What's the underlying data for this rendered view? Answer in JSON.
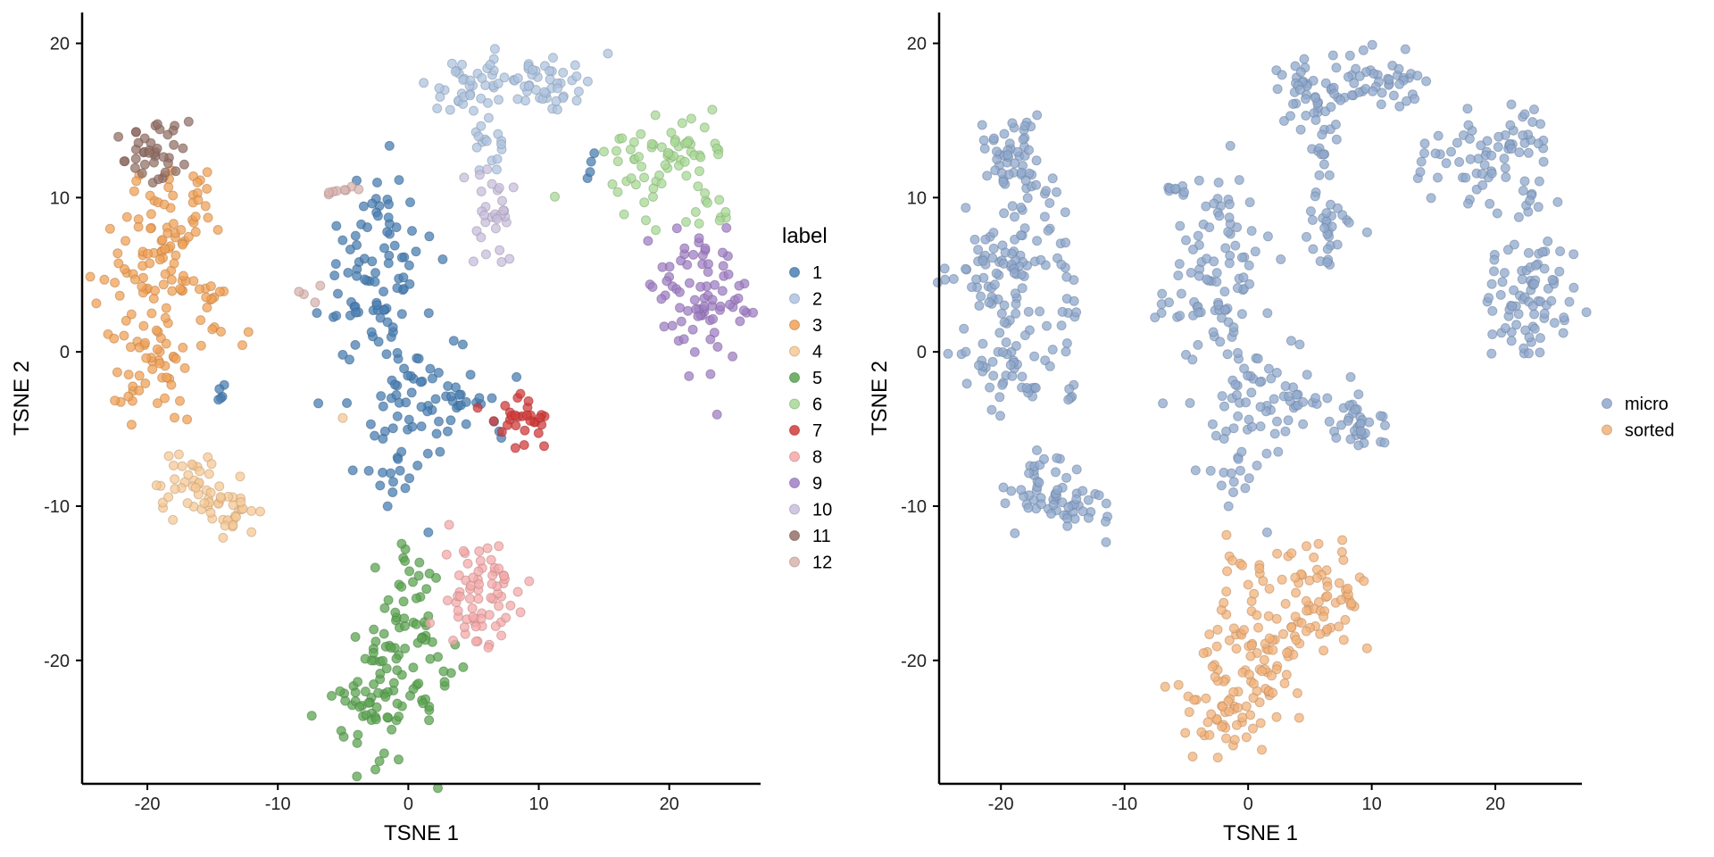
{
  "chart_data": [
    {
      "type": "scatter",
      "id": "left",
      "xlabel": "TSNE 1",
      "ylabel": "TSNE 2",
      "xlim": [
        -25,
        27
      ],
      "ylim": [
        -28,
        22
      ],
      "xticks": [
        -20,
        -10,
        0,
        10,
        20
      ],
      "yticks": [
        -20,
        -10,
        0,
        10,
        20
      ],
      "grid": false,
      "legend": {
        "title": "label",
        "position": "right"
      },
      "series": [
        {
          "name": "1",
          "color": "#4a7fb3",
          "clusters": [
            {
              "cx": -2.5,
              "cy": 5.5,
              "sx": 2.2,
              "sy": 3.2,
              "n": 85
            },
            {
              "cx": 1.0,
              "cy": -3.0,
              "sx": 3.0,
              "sy": 2.2,
              "n": 70
            },
            {
              "cx": -1.5,
              "cy": -8.0,
              "sx": 0.8,
              "sy": 1.2,
              "n": 12
            },
            {
              "cx": 5.0,
              "cy": -3.0,
              "sx": 0.8,
              "sy": 0.4,
              "n": 5
            },
            {
              "cx": -14.5,
              "cy": -2.7,
              "sx": 0.5,
              "sy": 0.3,
              "n": 5
            },
            {
              "cx": 14.5,
              "cy": 12.0,
              "sx": 0.6,
              "sy": 0.8,
              "n": 4
            }
          ]
        },
        {
          "name": "2",
          "color": "#aec3df",
          "clusters": [
            {
              "cx": 4.5,
              "cy": 17.0,
              "sx": 1.4,
              "sy": 1.0,
              "n": 30
            },
            {
              "cx": 9.5,
              "cy": 17.5,
              "sx": 2.6,
              "sy": 1.0,
              "n": 55
            },
            {
              "cx": 6.0,
              "cy": 13.0,
              "sx": 0.8,
              "sy": 1.0,
              "n": 15
            }
          ]
        },
        {
          "name": "3",
          "color": "#f0a157",
          "clusters": [
            {
              "cx": -20.0,
              "cy": 5.5,
              "sx": 2.2,
              "sy": 2.5,
              "n": 75
            },
            {
              "cx": -19.5,
              "cy": -1.0,
              "sx": 2.0,
              "sy": 1.6,
              "n": 50
            },
            {
              "cx": -17.5,
              "cy": 9.5,
              "sx": 1.6,
              "sy": 1.8,
              "n": 25
            },
            {
              "cx": -15.0,
              "cy": 3.0,
              "sx": 1.2,
              "sy": 2.0,
              "n": 15
            }
          ]
        },
        {
          "name": "4",
          "color": "#f6c895",
          "clusters": [
            {
              "cx": -17.0,
              "cy": -8.5,
              "sx": 1.6,
              "sy": 1.0,
              "n": 30
            },
            {
              "cx": -14.0,
              "cy": -10.3,
              "sx": 1.8,
              "sy": 0.9,
              "n": 35
            },
            {
              "cx": -5.0,
              "cy": -4.5,
              "sx": 0.2,
              "sy": 0.2,
              "n": 1
            }
          ]
        },
        {
          "name": "5",
          "color": "#5ca452",
          "clusters": [
            {
              "cx": -1.5,
              "cy": -22.5,
              "sx": 2.2,
              "sy": 1.8,
              "n": 70
            },
            {
              "cx": 0.5,
              "cy": -18.5,
              "sx": 2.0,
              "sy": 2.0,
              "n": 45
            },
            {
              "cx": -0.5,
              "cy": -14.5,
              "sx": 1.0,
              "sy": 1.0,
              "n": 10
            }
          ]
        },
        {
          "name": "6",
          "color": "#a7d894",
          "clusters": [
            {
              "cx": 18.0,
              "cy": 12.0,
              "sx": 1.8,
              "sy": 1.5,
              "n": 35
            },
            {
              "cx": 21.5,
              "cy": 13.5,
              "sx": 1.4,
              "sy": 1.2,
              "n": 30
            },
            {
              "cx": 22.5,
              "cy": 9.5,
              "sx": 1.0,
              "sy": 0.8,
              "n": 12
            }
          ]
        },
        {
          "name": "7",
          "color": "#d13b3b",
          "clusters": [
            {
              "cx": 9.0,
              "cy": -4.5,
              "sx": 1.0,
              "sy": 0.9,
              "n": 30
            }
          ]
        },
        {
          "name": "8",
          "color": "#f4a9a9",
          "clusters": [
            {
              "cx": 6.0,
              "cy": -15.0,
              "sx": 1.8,
              "sy": 1.5,
              "n": 45
            },
            {
              "cx": 5.0,
              "cy": -18.0,
              "sx": 1.4,
              "sy": 1.0,
              "n": 25
            }
          ]
        },
        {
          "name": "9",
          "color": "#a07fc4",
          "clusters": [
            {
              "cx": 22.5,
              "cy": 3.5,
              "sx": 1.8,
              "sy": 2.2,
              "n": 80
            }
          ]
        },
        {
          "name": "10",
          "color": "#c8bedb",
          "clusters": [
            {
              "cx": 6.5,
              "cy": 8.5,
              "sx": 1.0,
              "sy": 1.5,
              "n": 30
            }
          ]
        },
        {
          "name": "11",
          "color": "#937167",
          "clusters": [
            {
              "cx": -19.5,
              "cy": 13.0,
              "sx": 1.2,
              "sy": 1.0,
              "n": 40
            }
          ]
        },
        {
          "name": "12",
          "color": "#d8b3ad",
          "clusters": [
            {
              "cx": -5.5,
              "cy": 10.4,
              "sx": 0.8,
              "sy": 0.2,
              "n": 8
            },
            {
              "cx": -7.0,
              "cy": 3.0,
              "sx": 0.5,
              "sy": 0.8,
              "n": 4
            }
          ]
        }
      ]
    },
    {
      "type": "scatter",
      "id": "right",
      "xlabel": "TSNE 1",
      "ylabel": "TSNE 2",
      "xlim": [
        -25,
        27
      ],
      "ylim": [
        -28,
        22
      ],
      "xticks": [
        -20,
        -10,
        0,
        10,
        20
      ],
      "yticks": [
        -20,
        -10,
        0,
        10,
        20
      ],
      "grid": false,
      "legend": {
        "title": "",
        "position": "right"
      },
      "series": [
        {
          "name": "micro",
          "color": "#8fa8cc",
          "clusters": [
            {
              "cx": -2.5,
              "cy": 5.5,
              "sx": 2.2,
              "sy": 3.2,
              "n": 85
            },
            {
              "cx": 1.0,
              "cy": -3.0,
              "sx": 3.0,
              "sy": 2.2,
              "n": 70
            },
            {
              "cx": -1.5,
              "cy": -8.0,
              "sx": 0.8,
              "sy": 1.2,
              "n": 12
            },
            {
              "cx": 5.0,
              "cy": -3.0,
              "sx": 0.8,
              "sy": 0.4,
              "n": 5
            },
            {
              "cx": -14.5,
              "cy": -2.7,
              "sx": 0.5,
              "sy": 0.3,
              "n": 5
            },
            {
              "cx": 14.5,
              "cy": 12.0,
              "sx": 0.6,
              "sy": 0.8,
              "n": 4
            },
            {
              "cx": 4.5,
              "cy": 17.0,
              "sx": 1.4,
              "sy": 1.0,
              "n": 30
            },
            {
              "cx": 9.5,
              "cy": 17.5,
              "sx": 2.6,
              "sy": 1.0,
              "n": 55
            },
            {
              "cx": 6.0,
              "cy": 13.0,
              "sx": 0.8,
              "sy": 1.0,
              "n": 15
            },
            {
              "cx": -20.0,
              "cy": 5.5,
              "sx": 2.2,
              "sy": 2.5,
              "n": 75
            },
            {
              "cx": -19.5,
              "cy": -1.0,
              "sx": 2.0,
              "sy": 1.6,
              "n": 50
            },
            {
              "cx": -17.5,
              "cy": 9.5,
              "sx": 1.6,
              "sy": 1.8,
              "n": 25
            },
            {
              "cx": -15.0,
              "cy": 3.0,
              "sx": 1.2,
              "sy": 2.0,
              "n": 15
            },
            {
              "cx": -17.0,
              "cy": -8.5,
              "sx": 1.6,
              "sy": 1.0,
              "n": 30
            },
            {
              "cx": -14.0,
              "cy": -10.3,
              "sx": 1.8,
              "sy": 0.9,
              "n": 35
            },
            {
              "cx": 18.0,
              "cy": 12.0,
              "sx": 1.8,
              "sy": 1.5,
              "n": 35
            },
            {
              "cx": 21.5,
              "cy": 13.5,
              "sx": 1.4,
              "sy": 1.2,
              "n": 30
            },
            {
              "cx": 22.5,
              "cy": 9.5,
              "sx": 1.0,
              "sy": 0.8,
              "n": 12
            },
            {
              "cx": 9.0,
              "cy": -4.5,
              "sx": 1.0,
              "sy": 0.9,
              "n": 30
            },
            {
              "cx": 22.5,
              "cy": 3.5,
              "sx": 1.8,
              "sy": 2.2,
              "n": 80
            },
            {
              "cx": 6.5,
              "cy": 8.5,
              "sx": 1.0,
              "sy": 1.5,
              "n": 30
            },
            {
              "cx": -19.5,
              "cy": 13.0,
              "sx": 1.2,
              "sy": 1.0,
              "n": 40
            },
            {
              "cx": -5.5,
              "cy": 10.4,
              "sx": 0.8,
              "sy": 0.2,
              "n": 8
            },
            {
              "cx": -7.0,
              "cy": 3.0,
              "sx": 0.5,
              "sy": 0.8,
              "n": 4
            }
          ]
        },
        {
          "name": "sorted",
          "color": "#f2b27a",
          "clusters": [
            {
              "cx": -1.5,
              "cy": -22.5,
              "sx": 2.2,
              "sy": 1.8,
              "n": 70
            },
            {
              "cx": 0.5,
              "cy": -18.5,
              "sx": 2.0,
              "sy": 2.0,
              "n": 45
            },
            {
              "cx": -0.5,
              "cy": -14.5,
              "sx": 1.0,
              "sy": 1.0,
              "n": 10
            },
            {
              "cx": 6.0,
              "cy": -15.0,
              "sx": 1.8,
              "sy": 1.5,
              "n": 45
            },
            {
              "cx": 5.0,
              "cy": -18.0,
              "sx": 1.4,
              "sy": 1.0,
              "n": 25
            }
          ]
        }
      ]
    }
  ]
}
